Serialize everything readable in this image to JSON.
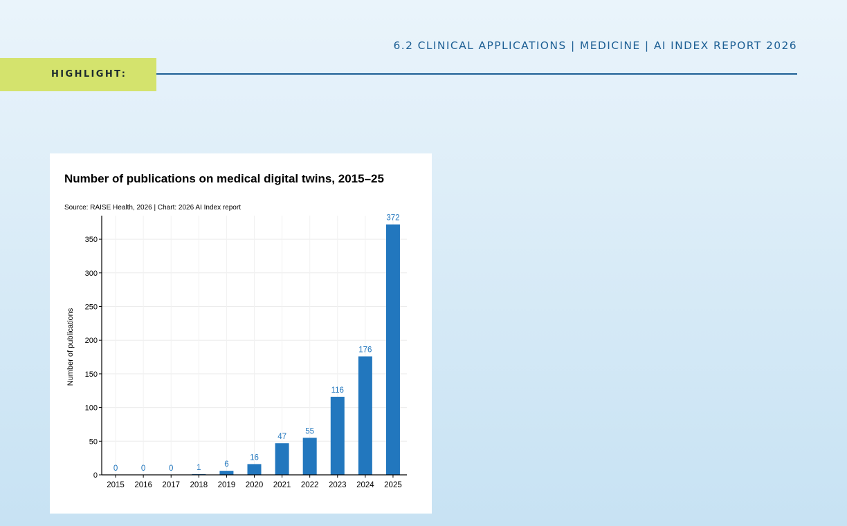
{
  "header": {
    "title": "6.2 CLINICAL APPLICATIONS  |  MEDICINE  |  AI INDEX REPORT 2026",
    "highlight_label": "HIGHLIGHT:"
  },
  "colors": {
    "bar": "#2277be",
    "label": "#2277be",
    "accent_tag": "#d4e36d",
    "header_text": "#1d5f94"
  },
  "chart_data": {
    "type": "bar",
    "title": "Number of publications on medical digital twins, 2015–25",
    "source": "Source: RAISE Health, 2026 | Chart: 2026 AI Index report",
    "ylabel": "Number of publications",
    "xlabel": "",
    "categories": [
      "2015",
      "2016",
      "2017",
      "2018",
      "2019",
      "2020",
      "2021",
      "2022",
      "2023",
      "2024",
      "2025"
    ],
    "values": [
      0,
      0,
      0,
      1,
      6,
      16,
      47,
      55,
      116,
      176,
      372
    ],
    "ylim": [
      0,
      385
    ],
    "yticks": [
      0,
      50,
      100,
      150,
      200,
      250,
      300,
      350
    ],
    "grid": true,
    "data_labels": true
  }
}
